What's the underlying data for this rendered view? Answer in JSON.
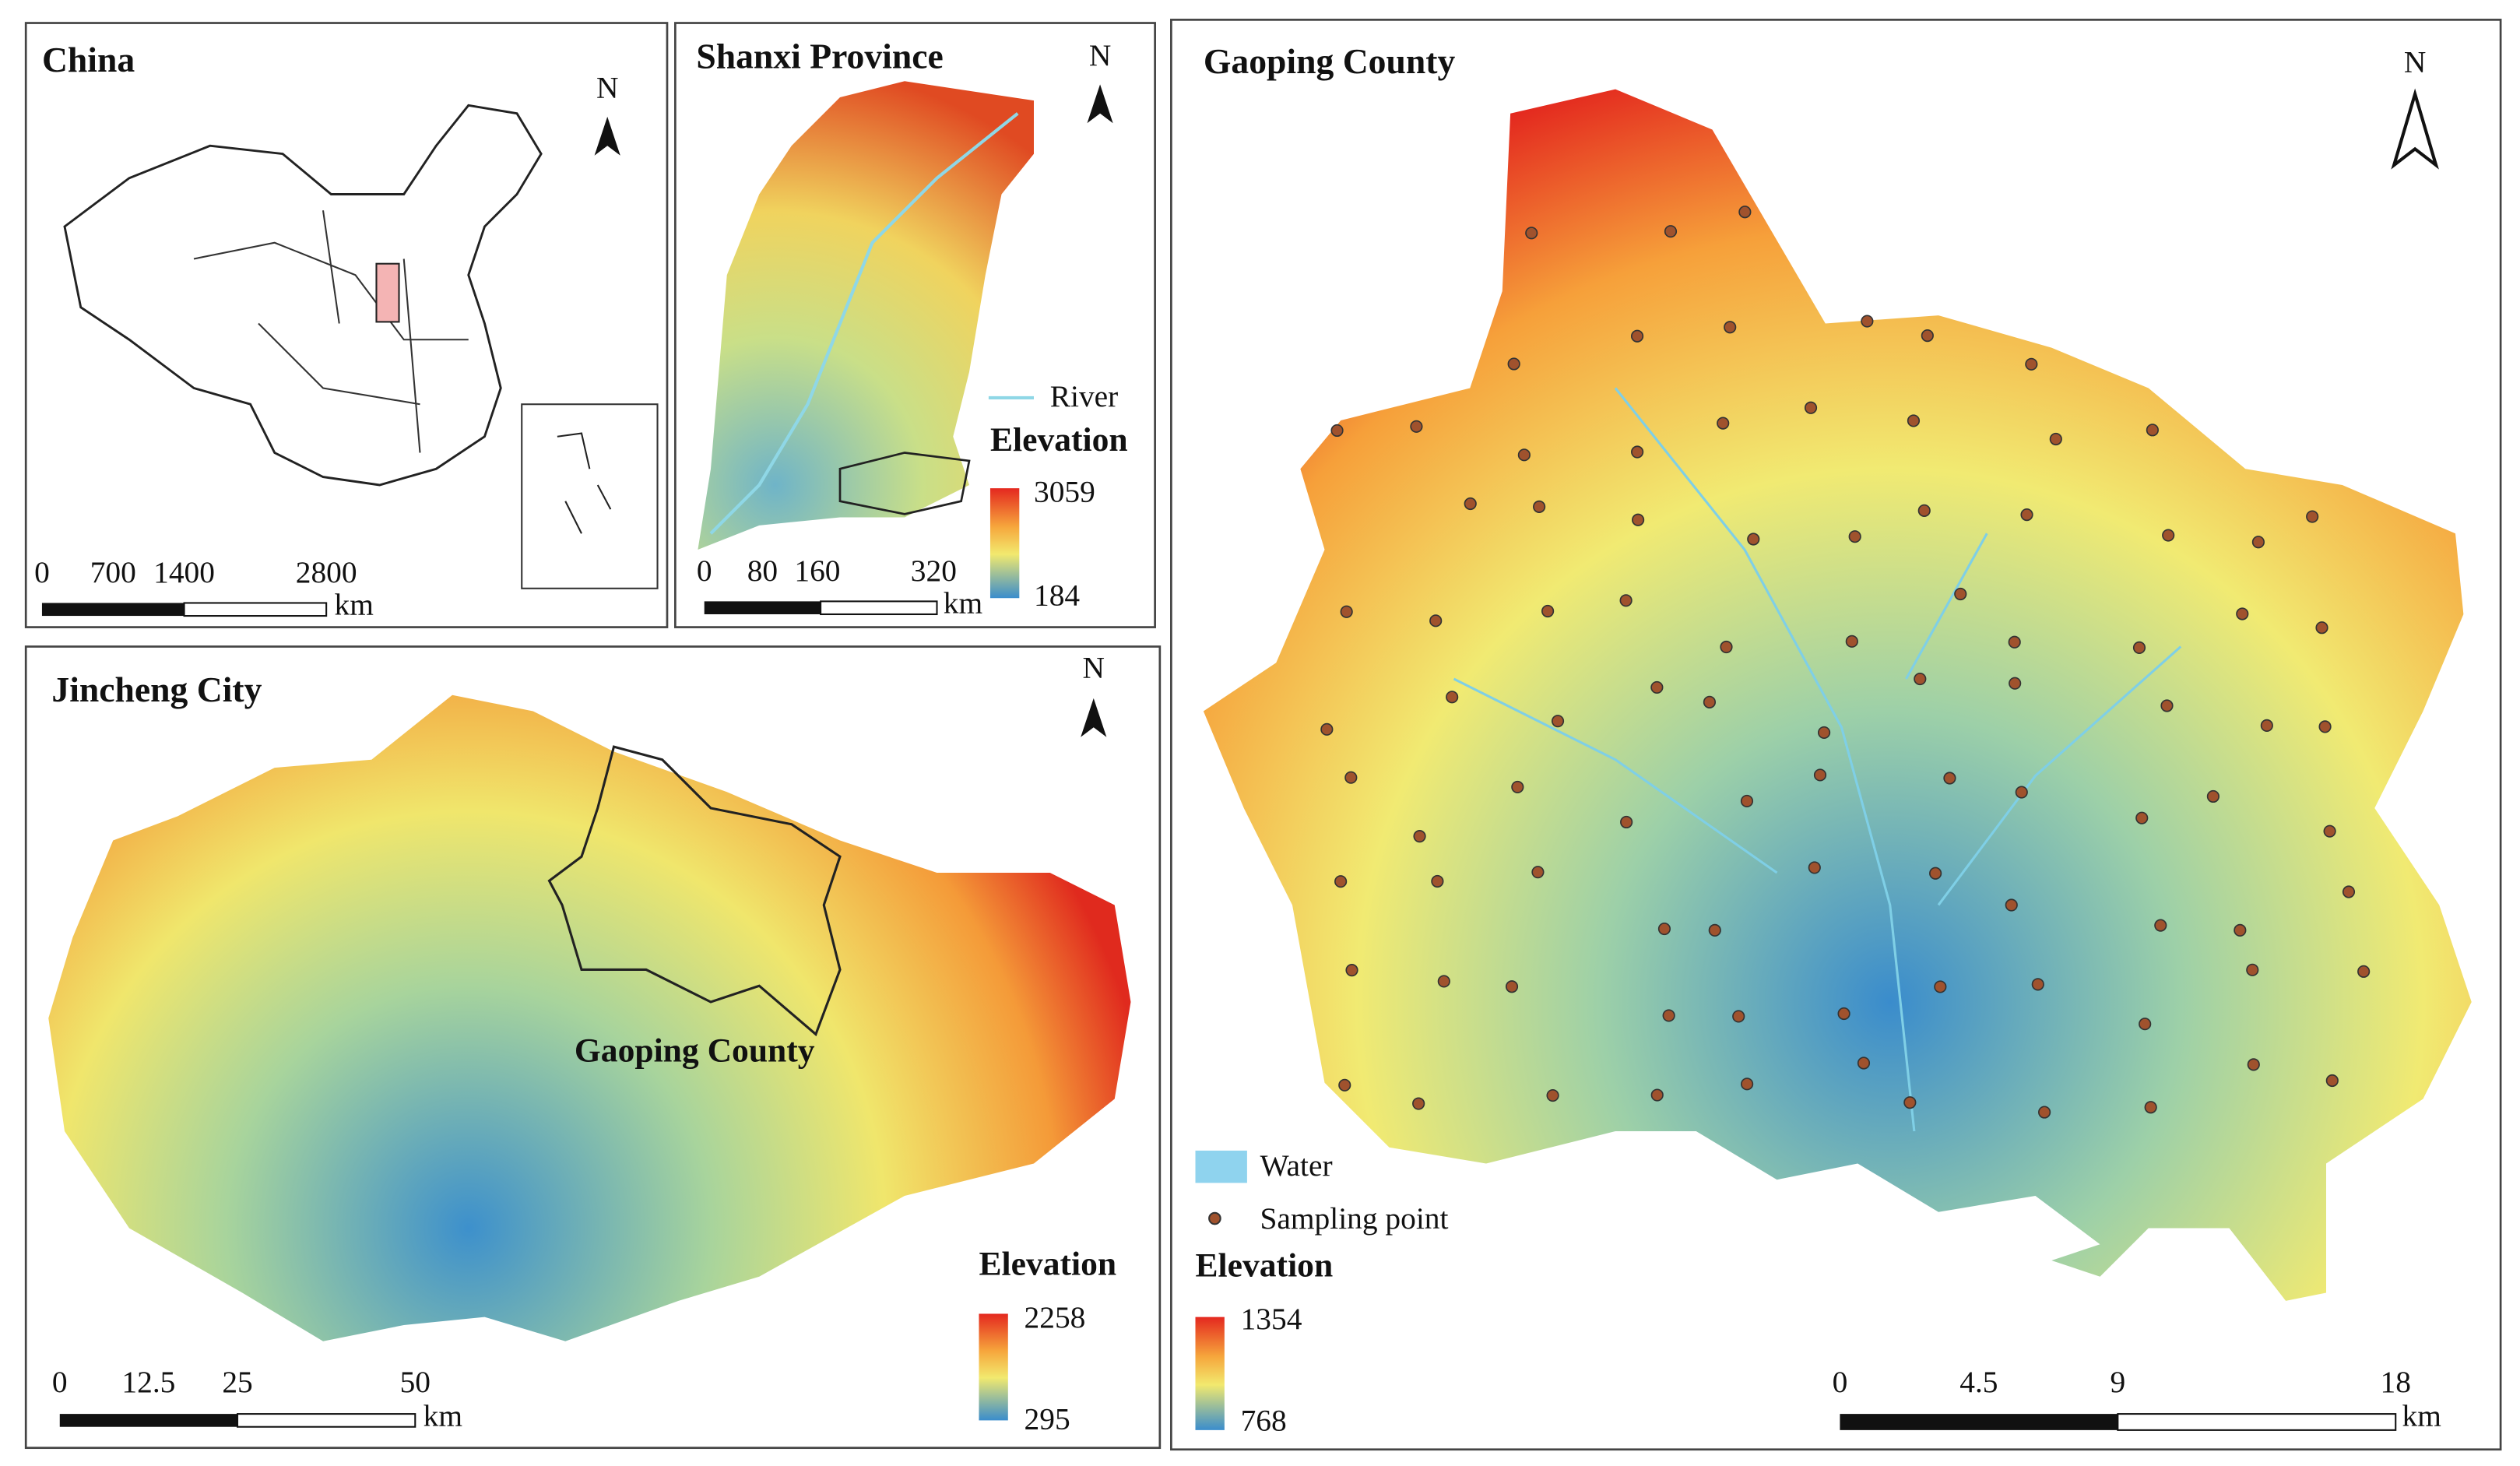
{
  "panels": {
    "china": {
      "title": "China",
      "north": "N",
      "scale": [
        "0",
        "700",
        "1400",
        "2800"
      ],
      "unit": "km"
    },
    "shanxi": {
      "title": "Shanxi Province",
      "north": "N",
      "river": "River",
      "elevation": "Elevation",
      "max": "3059",
      "min": "184",
      "scale": [
        "0",
        "80",
        "160",
        "320"
      ],
      "unit": "km"
    },
    "jincheng": {
      "title": "Jincheng City",
      "north": "N",
      "county": "Gaoping County",
      "elevation": "Elevation",
      "max": "2258",
      "min": "295",
      "scale": [
        "0",
        "12.5",
        "25",
        "50"
      ],
      "unit": "km"
    },
    "gaoping": {
      "title": "Gaoping County",
      "north": "N",
      "water": "Water",
      "sampling": "Sampling point",
      "elevation": "Elevation",
      "max": "1354",
      "min": "768",
      "scale": [
        "0",
        "4.5",
        "9",
        "18"
      ],
      "unit": "km"
    }
  }
}
